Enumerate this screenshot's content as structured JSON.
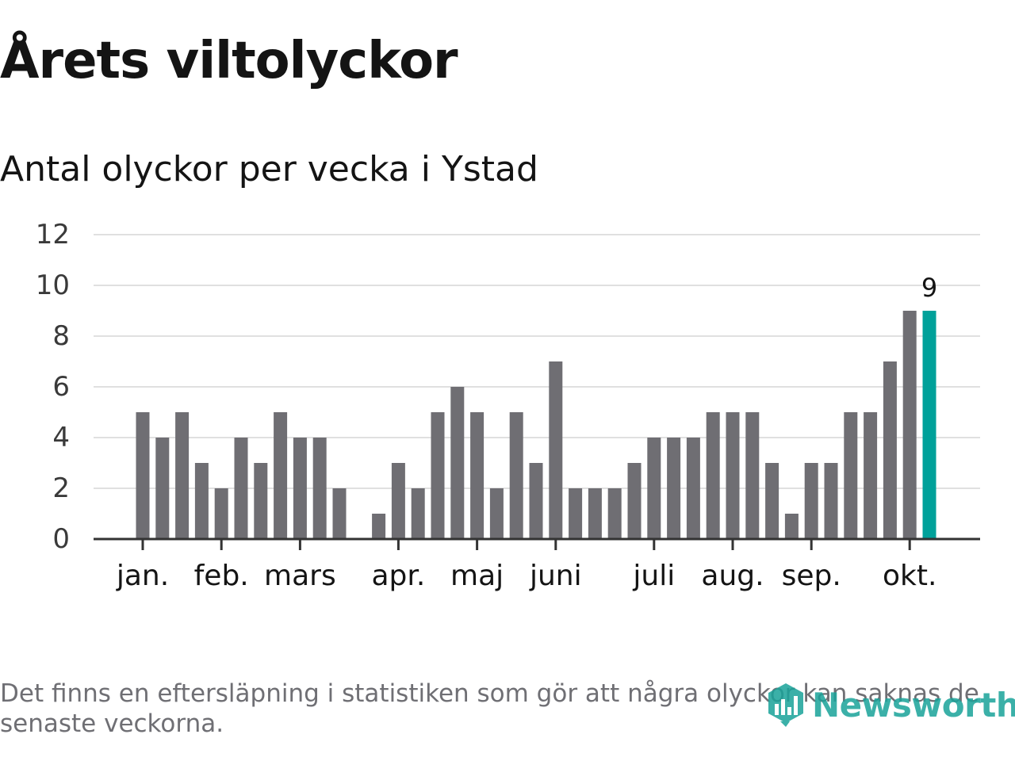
{
  "title": "Årets viltolyckor",
  "subtitle": "Antal olyckor per vecka i Ystad",
  "footnote": "Det finns en eftersläpning i statistiken som gör att några olyckor kan saknas de senaste veckorna.",
  "logo_text": "Newsworthy",
  "colors": {
    "bar": "#6f6e73",
    "highlight": "#00a19a",
    "grid": "#e0e0e0",
    "axis": "#333333",
    "text": "#141414",
    "logo": "#1aa39a"
  },
  "chart_data": {
    "type": "bar",
    "title": "Antal olyckor per vecka i Ystad",
    "xlabel": "",
    "ylabel": "",
    "ylim": [
      0,
      12
    ],
    "yticks": [
      0,
      2,
      4,
      6,
      8,
      10,
      12
    ],
    "grid": true,
    "weeks": [
      1,
      2,
      3,
      4,
      5,
      6,
      7,
      8,
      9,
      10,
      11,
      12,
      13,
      14,
      15,
      16,
      17,
      18,
      19,
      20,
      21,
      22,
      23,
      24,
      25,
      26,
      27,
      28,
      29,
      30,
      31,
      32,
      33,
      34,
      35,
      36,
      37,
      38,
      39,
      40,
      41
    ],
    "values": [
      5,
      4,
      5,
      3,
      2,
      4,
      3,
      5,
      4,
      4,
      2,
      0,
      1,
      3,
      2,
      5,
      6,
      5,
      2,
      5,
      3,
      7,
      2,
      2,
      2,
      3,
      4,
      4,
      4,
      5,
      5,
      5,
      3,
      1,
      3,
      3,
      5,
      5,
      7,
      9,
      9
    ],
    "highlight_index": 40,
    "highlight_label": "9",
    "month_labels": [
      {
        "label": "jan.",
        "week": 1
      },
      {
        "label": "feb.",
        "week": 5
      },
      {
        "label": "mars",
        "week": 9
      },
      {
        "label": "apr.",
        "week": 14
      },
      {
        "label": "maj",
        "week": 18
      },
      {
        "label": "juni",
        "week": 22
      },
      {
        "label": "juli",
        "week": 27
      },
      {
        "label": "aug.",
        "week": 31
      },
      {
        "label": "sep.",
        "week": 35
      },
      {
        "label": "okt.",
        "week": 40
      }
    ]
  }
}
